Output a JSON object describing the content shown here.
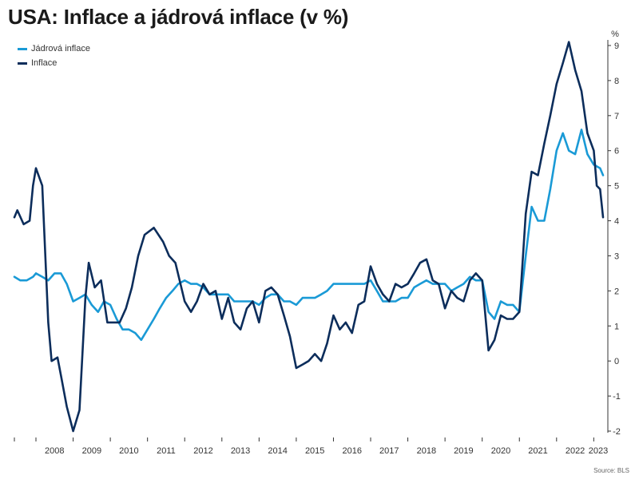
{
  "title": "USA: Inflace a jádrová inflace (v %)",
  "source": "Source: BLS",
  "colors": {
    "core": "#1a9ad6",
    "headline": "#0c2d5b",
    "axis": "#333333"
  },
  "chart_data": {
    "type": "line",
    "title": "USA: Inflace a jádrová inflace (v %)",
    "ylabel": "%",
    "ylim": [
      -2,
      9
    ],
    "yticks": [
      -2,
      -1,
      0,
      1,
      2,
      3,
      4,
      5,
      6,
      7,
      8,
      9
    ],
    "x_range": [
      2007.42,
      2023.25
    ],
    "x_tick_labels": [
      "2008",
      "2009",
      "2010",
      "2011",
      "2012",
      "2013",
      "2014",
      "2015",
      "2016",
      "2017",
      "2018",
      "2019",
      "2020",
      "2021",
      "2022",
      "2023"
    ],
    "legend_position": "top-left",
    "series": [
      {
        "name": "Jádrová inflace",
        "color": "#1a9ad6",
        "points": [
          [
            2007.42,
            2.4
          ],
          [
            2007.58,
            2.3
          ],
          [
            2007.75,
            2.3
          ],
          [
            2007.92,
            2.4
          ],
          [
            2008.0,
            2.5
          ],
          [
            2008.17,
            2.4
          ],
          [
            2008.33,
            2.3
          ],
          [
            2008.5,
            2.5
          ],
          [
            2008.67,
            2.5
          ],
          [
            2008.83,
            2.2
          ],
          [
            2009.0,
            1.7
          ],
          [
            2009.17,
            1.8
          ],
          [
            2009.33,
            1.9
          ],
          [
            2009.5,
            1.6
          ],
          [
            2009.67,
            1.4
          ],
          [
            2009.83,
            1.7
          ],
          [
            2010.0,
            1.6
          ],
          [
            2010.17,
            1.2
          ],
          [
            2010.33,
            0.9
          ],
          [
            2010.5,
            0.9
          ],
          [
            2010.67,
            0.8
          ],
          [
            2010.83,
            0.6
          ],
          [
            2011.0,
            0.9
          ],
          [
            2011.17,
            1.2
          ],
          [
            2011.33,
            1.5
          ],
          [
            2011.5,
            1.8
          ],
          [
            2011.67,
            2.0
          ],
          [
            2011.83,
            2.2
          ],
          [
            2012.0,
            2.3
          ],
          [
            2012.17,
            2.2
          ],
          [
            2012.33,
            2.2
          ],
          [
            2012.5,
            2.1
          ],
          [
            2012.67,
            1.9
          ],
          [
            2012.83,
            1.9
          ],
          [
            2013.0,
            1.9
          ],
          [
            2013.17,
            1.9
          ],
          [
            2013.33,
            1.7
          ],
          [
            2013.5,
            1.7
          ],
          [
            2013.67,
            1.7
          ],
          [
            2013.83,
            1.7
          ],
          [
            2014.0,
            1.6
          ],
          [
            2014.17,
            1.8
          ],
          [
            2014.33,
            1.9
          ],
          [
            2014.5,
            1.9
          ],
          [
            2014.67,
            1.7
          ],
          [
            2014.83,
            1.7
          ],
          [
            2015.0,
            1.6
          ],
          [
            2015.17,
            1.8
          ],
          [
            2015.33,
            1.8
          ],
          [
            2015.5,
            1.8
          ],
          [
            2015.67,
            1.9
          ],
          [
            2015.83,
            2.0
          ],
          [
            2016.0,
            2.2
          ],
          [
            2016.17,
            2.2
          ],
          [
            2016.33,
            2.2
          ],
          [
            2016.5,
            2.2
          ],
          [
            2016.67,
            2.2
          ],
          [
            2016.83,
            2.2
          ],
          [
            2017.0,
            2.3
          ],
          [
            2017.17,
            2.0
          ],
          [
            2017.33,
            1.7
          ],
          [
            2017.5,
            1.7
          ],
          [
            2017.67,
            1.7
          ],
          [
            2017.83,
            1.8
          ],
          [
            2018.0,
            1.8
          ],
          [
            2018.17,
            2.1
          ],
          [
            2018.33,
            2.2
          ],
          [
            2018.5,
            2.3
          ],
          [
            2018.67,
            2.2
          ],
          [
            2018.83,
            2.2
          ],
          [
            2019.0,
            2.2
          ],
          [
            2019.17,
            2.0
          ],
          [
            2019.33,
            2.1
          ],
          [
            2019.5,
            2.2
          ],
          [
            2019.67,
            2.4
          ],
          [
            2019.83,
            2.3
          ],
          [
            2020.0,
            2.3
          ],
          [
            2020.17,
            1.4
          ],
          [
            2020.33,
            1.2
          ],
          [
            2020.5,
            1.7
          ],
          [
            2020.67,
            1.6
          ],
          [
            2020.83,
            1.6
          ],
          [
            2021.0,
            1.4
          ],
          [
            2021.17,
            3.0
          ],
          [
            2021.33,
            4.4
          ],
          [
            2021.5,
            4.0
          ],
          [
            2021.67,
            4.0
          ],
          [
            2021.83,
            4.9
          ],
          [
            2022.0,
            6.0
          ],
          [
            2022.17,
            6.5
          ],
          [
            2022.33,
            6.0
          ],
          [
            2022.5,
            5.9
          ],
          [
            2022.67,
            6.6
          ],
          [
            2022.83,
            5.9
          ],
          [
            2023.0,
            5.6
          ],
          [
            2023.17,
            5.5
          ],
          [
            2023.25,
            5.3
          ]
        ]
      },
      {
        "name": "Inflace",
        "color": "#0c2d5b",
        "points": [
          [
            2007.42,
            4.1
          ],
          [
            2007.5,
            4.3
          ],
          [
            2007.67,
            3.9
          ],
          [
            2007.83,
            4.0
          ],
          [
            2007.92,
            5.0
          ],
          [
            2008.0,
            5.5
          ],
          [
            2008.17,
            5.0
          ],
          [
            2008.33,
            1.1
          ],
          [
            2008.42,
            0.0
          ],
          [
            2008.58,
            0.1
          ],
          [
            2008.67,
            -0.4
          ],
          [
            2008.83,
            -1.3
          ],
          [
            2009.0,
            -2.0
          ],
          [
            2009.17,
            -1.4
          ],
          [
            2009.33,
            1.8
          ],
          [
            2009.42,
            2.8
          ],
          [
            2009.58,
            2.1
          ],
          [
            2009.75,
            2.3
          ],
          [
            2009.92,
            1.1
          ],
          [
            2010.08,
            1.1
          ],
          [
            2010.25,
            1.1
          ],
          [
            2010.42,
            1.5
          ],
          [
            2010.58,
            2.1
          ],
          [
            2010.75,
            3.0
          ],
          [
            2010.92,
            3.6
          ],
          [
            2011.17,
            3.8
          ],
          [
            2011.42,
            3.4
          ],
          [
            2011.58,
            3.0
          ],
          [
            2011.75,
            2.8
          ],
          [
            2012.0,
            1.7
          ],
          [
            2012.17,
            1.4
          ],
          [
            2012.33,
            1.7
          ],
          [
            2012.5,
            2.2
          ],
          [
            2012.67,
            1.9
          ],
          [
            2012.83,
            2.0
          ],
          [
            2013.0,
            1.2
          ],
          [
            2013.17,
            1.8
          ],
          [
            2013.33,
            1.1
          ],
          [
            2013.5,
            0.9
          ],
          [
            2013.67,
            1.5
          ],
          [
            2013.83,
            1.7
          ],
          [
            2014.0,
            1.1
          ],
          [
            2014.17,
            2.0
          ],
          [
            2014.33,
            2.1
          ],
          [
            2014.5,
            1.9
          ],
          [
            2014.67,
            1.3
          ],
          [
            2014.83,
            0.7
          ],
          [
            2015.0,
            -0.2
          ],
          [
            2015.17,
            -0.1
          ],
          [
            2015.33,
            0.0
          ],
          [
            2015.5,
            0.2
          ],
          [
            2015.67,
            0.0
          ],
          [
            2015.83,
            0.5
          ],
          [
            2016.0,
            1.3
          ],
          [
            2016.17,
            0.9
          ],
          [
            2016.33,
            1.1
          ],
          [
            2016.5,
            0.8
          ],
          [
            2016.67,
            1.6
          ],
          [
            2016.83,
            1.7
          ],
          [
            2017.0,
            2.7
          ],
          [
            2017.17,
            2.2
          ],
          [
            2017.33,
            1.9
          ],
          [
            2017.5,
            1.7
          ],
          [
            2017.67,
            2.2
          ],
          [
            2017.83,
            2.1
          ],
          [
            2018.0,
            2.2
          ],
          [
            2018.17,
            2.5
          ],
          [
            2018.33,
            2.8
          ],
          [
            2018.5,
            2.9
          ],
          [
            2018.67,
            2.3
          ],
          [
            2018.83,
            2.2
          ],
          [
            2019.0,
            1.5
          ],
          [
            2019.17,
            2.0
          ],
          [
            2019.33,
            1.8
          ],
          [
            2019.5,
            1.7
          ],
          [
            2019.67,
            2.3
          ],
          [
            2019.83,
            2.5
          ],
          [
            2020.0,
            2.3
          ],
          [
            2020.17,
            0.3
          ],
          [
            2020.33,
            0.6
          ],
          [
            2020.5,
            1.3
          ],
          [
            2020.67,
            1.2
          ],
          [
            2020.83,
            1.2
          ],
          [
            2021.0,
            1.4
          ],
          [
            2021.17,
            4.2
          ],
          [
            2021.33,
            5.4
          ],
          [
            2021.5,
            5.3
          ],
          [
            2021.67,
            6.2
          ],
          [
            2021.83,
            7.0
          ],
          [
            2022.0,
            7.9
          ],
          [
            2022.17,
            8.5
          ],
          [
            2022.33,
            9.1
          ],
          [
            2022.5,
            8.3
          ],
          [
            2022.67,
            7.7
          ],
          [
            2022.83,
            6.5
          ],
          [
            2023.0,
            6.0
          ],
          [
            2023.08,
            5.0
          ],
          [
            2023.17,
            4.9
          ],
          [
            2023.25,
            4.1
          ]
        ]
      }
    ]
  }
}
